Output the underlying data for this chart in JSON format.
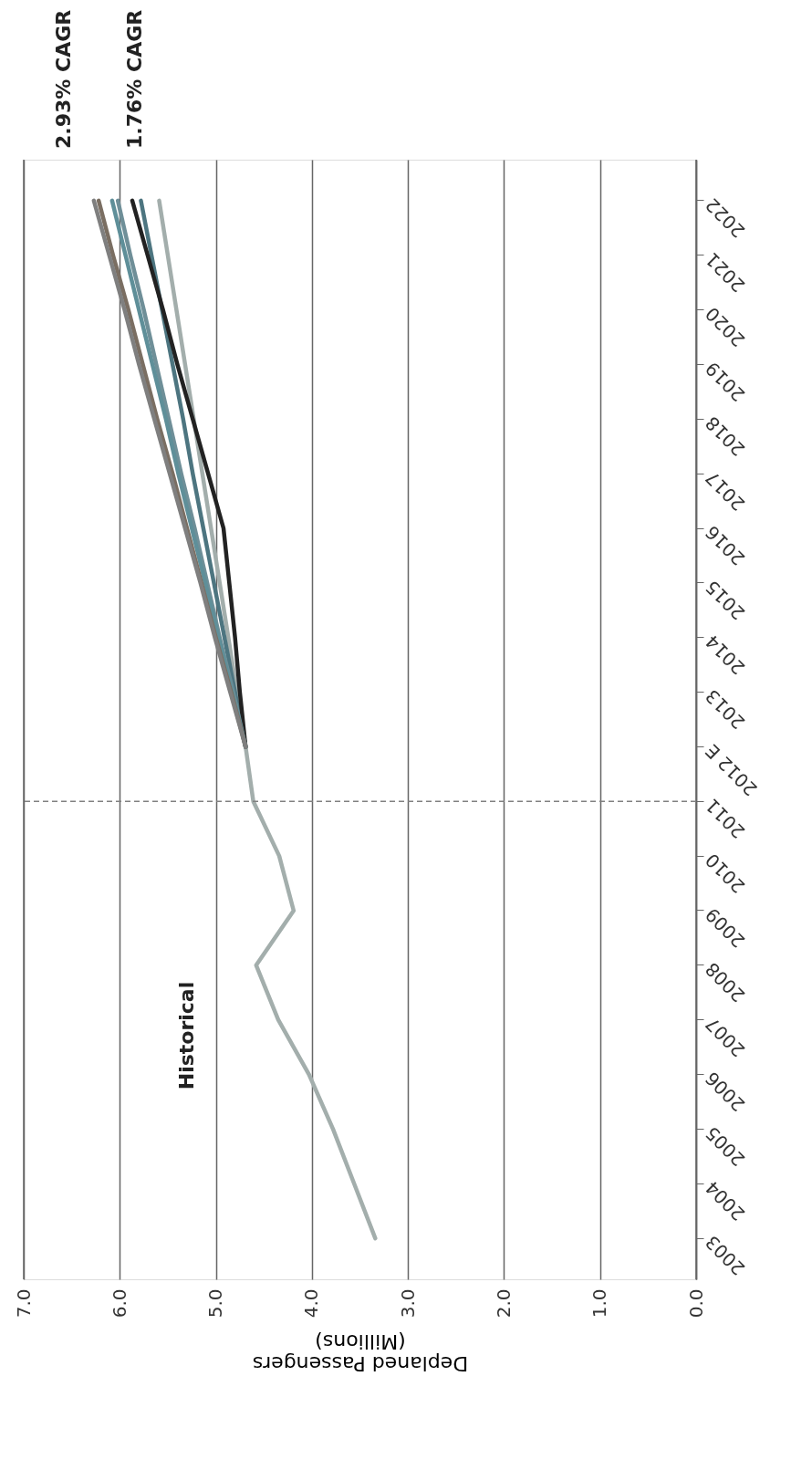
{
  "chart_data": {
    "type": "line",
    "orientation": "horizontal",
    "xlabel": "Deplaned Passengers\n(Millions)",
    "categories": [
      "2022",
      "2021",
      "2020",
      "2019",
      "2018",
      "2017",
      "2016",
      "2015",
      "2014",
      "2013",
      "2012 E",
      "2011",
      "2010",
      "2009",
      "2008",
      "2007",
      "2006",
      "2005",
      "2004",
      "2003"
    ],
    "series": [
      {
        "color": "#a3aeac",
        "values": [
          5.59,
          5.5,
          5.41,
          5.32,
          5.23,
          5.14,
          5.05,
          4.96,
          4.87,
          4.78,
          4.69,
          4.61,
          4.34,
          4.19,
          4.58,
          4.35,
          4.03,
          3.78,
          3.56,
          3.34
        ]
      },
      {
        "color": "#4d7580",
        "values": [
          5.78,
          5.67,
          5.56,
          5.45,
          5.34,
          5.24,
          5.13,
          5.02,
          4.91,
          4.8,
          4.69,
          null,
          null,
          null,
          null,
          null,
          null,
          null,
          null,
          null
        ]
      },
      {
        "color": "#222222",
        "values": [
          5.87,
          5.71,
          5.55,
          5.4,
          5.24,
          5.08,
          4.92,
          4.86,
          4.8,
          4.75,
          4.69,
          null,
          null,
          null,
          null,
          null,
          null,
          null,
          null,
          null
        ]
      },
      {
        "color": "#6f8f98",
        "values": [
          6.02,
          5.89,
          5.75,
          5.62,
          5.49,
          5.36,
          5.22,
          5.09,
          4.96,
          4.82,
          4.69,
          null,
          null,
          null,
          null,
          null,
          null,
          null,
          null,
          null
        ]
      },
      {
        "color": "#5f8f99",
        "values": [
          6.08,
          5.94,
          5.8,
          5.66,
          5.52,
          5.39,
          5.25,
          5.11,
          4.97,
          4.83,
          4.69,
          null,
          null,
          null,
          null,
          null,
          null,
          null,
          null,
          null
        ]
      },
      {
        "color": "#7a6e62",
        "values": [
          6.22,
          6.07,
          5.91,
          5.76,
          5.61,
          5.45,
          5.3,
          5.15,
          5.0,
          4.84,
          4.69,
          null,
          null,
          null,
          null,
          null,
          null,
          null,
          null,
          null
        ]
      },
      {
        "color": "#7f7f7f",
        "values": [
          6.27,
          6.11,
          5.95,
          5.8,
          5.64,
          5.48,
          5.32,
          5.16,
          5.01,
          4.85,
          4.69,
          null,
          null,
          null,
          null,
          null,
          null,
          null,
          null,
          null
        ]
      }
    ],
    "xlim": [
      7,
      0
    ],
    "xticks": [
      {
        "value": 0,
        "label": "0.0"
      },
      {
        "value": 1,
        "label": "1.0"
      },
      {
        "value": 2,
        "label": "2.0"
      },
      {
        "value": 3,
        "label": "3.0"
      },
      {
        "value": 4,
        "label": "4.0"
      },
      {
        "value": 5,
        "label": "5.0"
      },
      {
        "value": 6,
        "label": "6.0"
      },
      {
        "value": 7,
        "label": "7.0"
      }
    ],
    "grid": "x",
    "legend": false,
    "line_style": "solid",
    "marker": "none",
    "ref_lines": [
      {
        "axis": "y",
        "value": "2011",
        "color": "#808080",
        "line_style": "dashed"
      }
    ],
    "annotations": [
      "Historical",
      "2.93% CAGR",
      "1.76% CAGR"
    ]
  }
}
